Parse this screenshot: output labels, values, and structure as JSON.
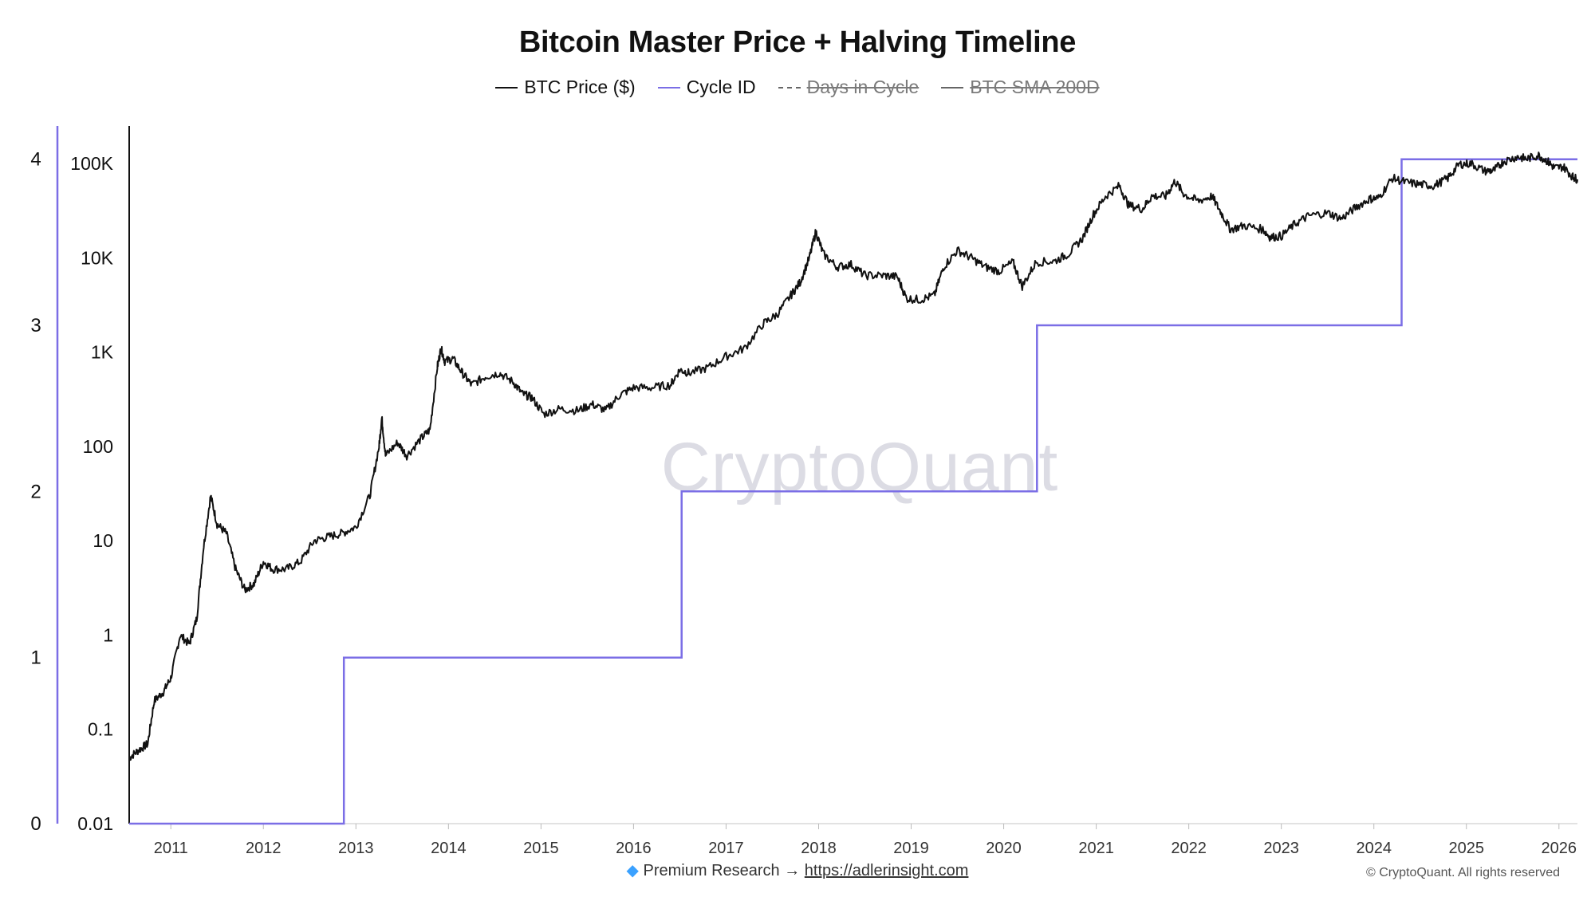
{
  "chart_data": {
    "type": "line",
    "title": "Bitcoin Master Price + Halving Timeline",
    "legend": [
      {
        "name": "BTC Price ($)",
        "color": "#111111",
        "style": "solid",
        "visible": true
      },
      {
        "name": "Cycle ID",
        "color": "#7b6ee6",
        "style": "solid",
        "visible": true
      },
      {
        "name": "Days in Cycle",
        "color": "#666666",
        "style": "dashed",
        "visible": false
      },
      {
        "name": "BTC SMA 200D",
        "color": "#666666",
        "style": "solid",
        "visible": false
      }
    ],
    "legend_position": "top-center",
    "x_axis": {
      "type": "time",
      "range": [
        2010.55,
        2026.2
      ],
      "ticks": [
        "2011",
        "2012",
        "2013",
        "2014",
        "2015",
        "2016",
        "2017",
        "2018",
        "2019",
        "2020",
        "2021",
        "2022",
        "2023",
        "2024",
        "2025",
        "2026"
      ]
    },
    "y_axis_price": {
      "scale": "log",
      "range": [
        0.01,
        250000
      ],
      "ticks": [
        "0.01",
        "0.1",
        "1",
        "10",
        "100",
        "1K",
        "10K",
        "100K"
      ]
    },
    "y_axis_cycle": {
      "scale": "linear",
      "range": [
        0,
        4.2
      ],
      "ticks": [
        "0",
        "1",
        "2",
        "3",
        "4"
      ],
      "color": "#7b6ee6"
    },
    "series": [
      {
        "name": "BTC Price ($)",
        "axis": "price",
        "points": [
          [
            2010.55,
            0.05
          ],
          [
            2010.65,
            0.06
          ],
          [
            2010.75,
            0.07
          ],
          [
            2010.82,
            0.2
          ],
          [
            2010.92,
            0.25
          ],
          [
            2011.0,
            0.35
          ],
          [
            2011.1,
            1.0
          ],
          [
            2011.2,
            0.8
          ],
          [
            2011.28,
            1.5
          ],
          [
            2011.35,
            8
          ],
          [
            2011.43,
            30
          ],
          [
            2011.5,
            15
          ],
          [
            2011.6,
            12
          ],
          [
            2011.7,
            5
          ],
          [
            2011.8,
            3
          ],
          [
            2011.9,
            3.5
          ],
          [
            2012.0,
            6
          ],
          [
            2012.1,
            5
          ],
          [
            2012.25,
            5
          ],
          [
            2012.4,
            6
          ],
          [
            2012.55,
            10
          ],
          [
            2012.7,
            11
          ],
          [
            2012.85,
            12
          ],
          [
            2013.0,
            14
          ],
          [
            2013.15,
            30
          ],
          [
            2013.25,
            100
          ],
          [
            2013.28,
            200
          ],
          [
            2013.32,
            80
          ],
          [
            2013.45,
            110
          ],
          [
            2013.55,
            80
          ],
          [
            2013.7,
            120
          ],
          [
            2013.8,
            150
          ],
          [
            2013.88,
            700
          ],
          [
            2013.92,
            1100
          ],
          [
            2013.96,
            800
          ],
          [
            2014.05,
            850
          ],
          [
            2014.15,
            600
          ],
          [
            2014.25,
            450
          ],
          [
            2014.4,
            550
          ],
          [
            2014.55,
            600
          ],
          [
            2014.7,
            480
          ],
          [
            2014.8,
            360
          ],
          [
            2014.9,
            330
          ],
          [
            2015.03,
            220
          ],
          [
            2015.2,
            250
          ],
          [
            2015.4,
            240
          ],
          [
            2015.55,
            280
          ],
          [
            2015.7,
            240
          ],
          [
            2015.85,
            350
          ],
          [
            2016.0,
            420
          ],
          [
            2016.2,
            420
          ],
          [
            2016.4,
            450
          ],
          [
            2016.5,
            650
          ],
          [
            2016.6,
            600
          ],
          [
            2016.8,
            680
          ],
          [
            2017.0,
            900
          ],
          [
            2017.2,
            1100
          ],
          [
            2017.4,
            2000
          ],
          [
            2017.55,
            2500
          ],
          [
            2017.7,
            4000
          ],
          [
            2017.8,
            5500
          ],
          [
            2017.9,
            10000
          ],
          [
            2017.97,
            19000
          ],
          [
            2018.05,
            11000
          ],
          [
            2018.2,
            8000
          ],
          [
            2018.35,
            8500
          ],
          [
            2018.5,
            6500
          ],
          [
            2018.7,
            6500
          ],
          [
            2018.85,
            6300
          ],
          [
            2018.95,
            3700
          ],
          [
            2019.1,
            3600
          ],
          [
            2019.25,
            4000
          ],
          [
            2019.35,
            8000
          ],
          [
            2019.5,
            12000
          ],
          [
            2019.65,
            10000
          ],
          [
            2019.8,
            8000
          ],
          [
            2019.95,
            7200
          ],
          [
            2020.1,
            9000
          ],
          [
            2020.2,
            5000
          ],
          [
            2020.35,
            9000
          ],
          [
            2020.55,
            9200
          ],
          [
            2020.7,
            11000
          ],
          [
            2020.85,
            16000
          ],
          [
            2020.97,
            29000
          ],
          [
            2021.1,
            45000
          ],
          [
            2021.25,
            58000
          ],
          [
            2021.35,
            36000
          ],
          [
            2021.5,
            33000
          ],
          [
            2021.6,
            45000
          ],
          [
            2021.75,
            45000
          ],
          [
            2021.85,
            65000
          ],
          [
            2021.95,
            47000
          ],
          [
            2022.1,
            40000
          ],
          [
            2022.25,
            45000
          ],
          [
            2022.35,
            30000
          ],
          [
            2022.45,
            20000
          ],
          [
            2022.6,
            22000
          ],
          [
            2022.8,
            20000
          ],
          [
            2022.88,
            16500
          ],
          [
            2023.0,
            17000
          ],
          [
            2023.15,
            23000
          ],
          [
            2023.3,
            28000
          ],
          [
            2023.5,
            30000
          ],
          [
            2023.65,
            26000
          ],
          [
            2023.8,
            34000
          ],
          [
            2023.95,
            42000
          ],
          [
            2024.05,
            43000
          ],
          [
            2024.2,
            70000
          ],
          [
            2024.35,
            63000
          ],
          [
            2024.5,
            60000
          ],
          [
            2024.65,
            58000
          ],
          [
            2024.8,
            70000
          ],
          [
            2024.92,
            98000
          ],
          [
            2025.05,
            100000
          ],
          [
            2025.2,
            83000
          ],
          [
            2025.3,
            85000
          ],
          [
            2025.4,
            105000
          ],
          [
            2025.55,
            118000
          ],
          [
            2025.65,
            112000
          ],
          [
            2025.78,
            122000
          ],
          [
            2025.88,
            105000
          ],
          [
            2025.95,
            90000
          ],
          [
            2026.05,
            92000
          ],
          [
            2026.15,
            72000
          ],
          [
            2026.2,
            68000
          ]
        ]
      },
      {
        "name": "Cycle ID",
        "axis": "cycle",
        "step": true,
        "points": [
          [
            2010.55,
            0
          ],
          [
            2012.87,
            0
          ],
          [
            2012.87,
            1
          ],
          [
            2016.52,
            1
          ],
          [
            2016.52,
            2
          ],
          [
            2020.36,
            2
          ],
          [
            2020.36,
            3
          ],
          [
            2024.3,
            3
          ],
          [
            2024.3,
            4
          ],
          [
            2026.2,
            4
          ]
        ]
      }
    ]
  },
  "watermark": "CryptoQuant",
  "footer": {
    "gem_icon": "gem-icon",
    "text": "Premium Research →",
    "link": "https://adlerinsight.com"
  },
  "copyright": "© CryptoQuant. All rights reserved"
}
